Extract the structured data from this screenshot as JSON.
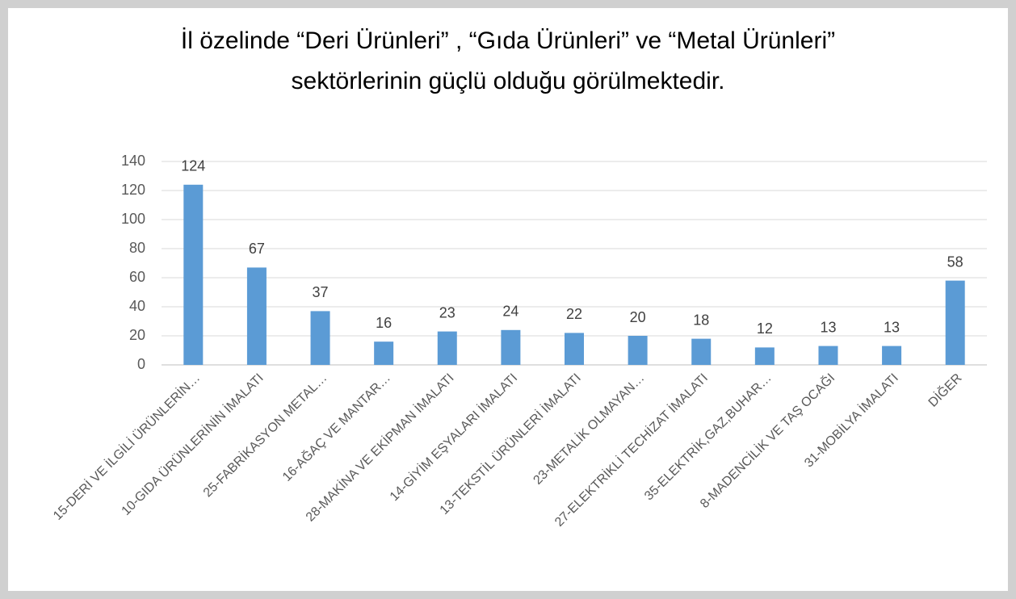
{
  "chart_data": {
    "type": "bar",
    "title": [
      "İl özelinde “Deri Ürünleri” , “Gıda Ürünleri” ve “Metal Ürünleri”",
      "sektörlerinin    güçlü olduğu görülmektedir."
    ],
    "categories": [
      "15-DERİ VE İLGİLİ ÜRÜNLERİN…",
      "10-GIDA ÜRÜNLERİNİN İMALATI",
      "25-FABRİKASYON METAL…",
      "16-AĞAÇ VE MANTAR…",
      "28-MAKİNA VE EKİPMAN İMALATI",
      "14-GİYİM EŞYALARI İMALATI",
      "13-TEKSTİL ÜRÜNLERİ İMALATI",
      "23-METALİK OLMAYAN…",
      "27-ELEKTRİKLİ TECHİZAT İMALATI",
      "35-ELEKTRİK,GAZ,BUHAR…",
      "8-MADENCİLİK VE TAŞ OCAĞI",
      "31-MOBİLYA İMALATI",
      "DİĞER"
    ],
    "values": [
      124,
      67,
      37,
      16,
      23,
      24,
      22,
      20,
      18,
      12,
      13,
      13,
      58
    ],
    "color": "#5b9bd5",
    "ylim": [
      0,
      140
    ],
    "yticks": [
      0,
      20,
      40,
      60,
      80,
      100,
      120,
      140
    ],
    "grid": true
  }
}
